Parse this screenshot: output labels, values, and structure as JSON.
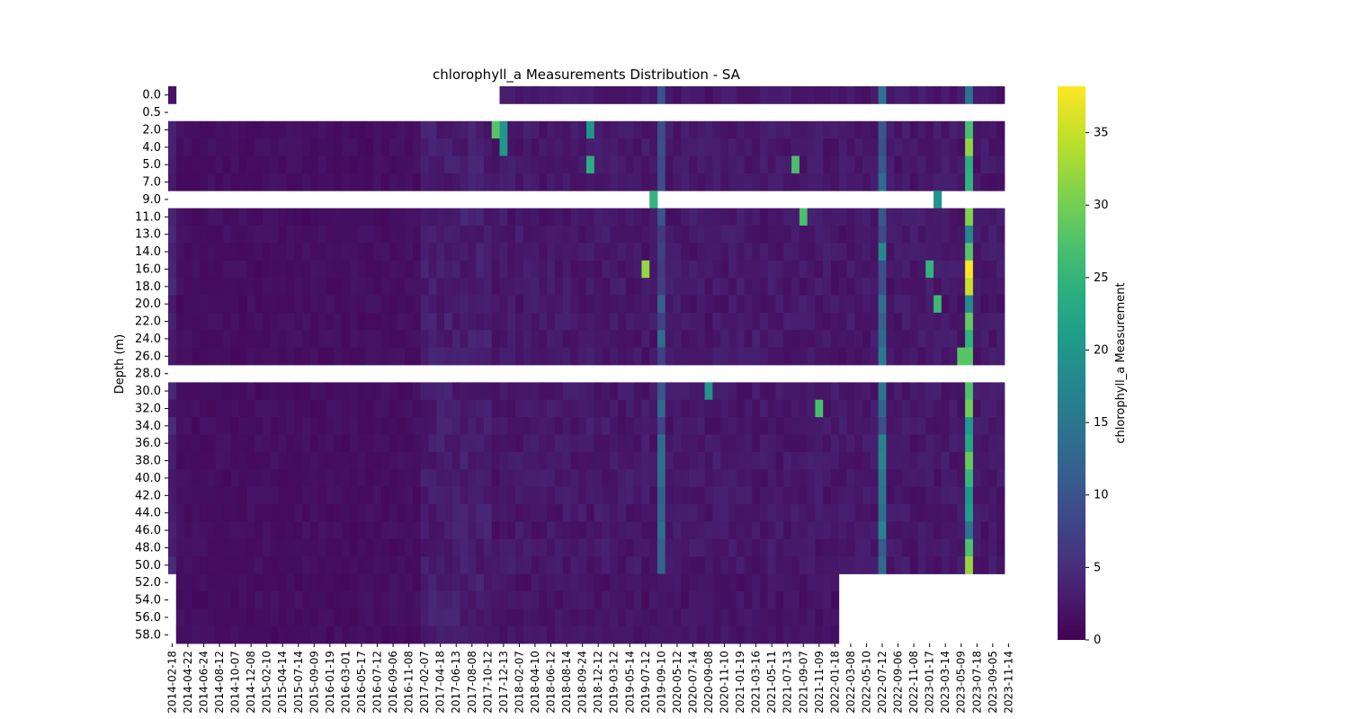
{
  "chart_data": {
    "type": "heatmap",
    "title": "chlorophyll_a Measurements Distribution - SA",
    "ylabel": "Depth (m)",
    "xlabel": "",
    "colorbar": {
      "label": "chlorophyll_a Measurement",
      "colormap": "viridis",
      "range": [
        0,
        38.2
      ],
      "ticks": [
        0,
        5,
        10,
        15,
        20,
        25,
        30,
        35
      ]
    },
    "x_tick_labels": [
      "2014-02-18",
      "2014-04-22",
      "2014-06-24",
      "2014-08-12",
      "2014-10-07",
      "2014-12-08",
      "2015-02-10",
      "2015-04-14",
      "2015-07-14",
      "2015-09-09",
      "2016-01-19",
      "2016-03-01",
      "2016-05-17",
      "2016-07-12",
      "2016-09-06",
      "2016-11-08",
      "2017-02-07",
      "2017-04-18",
      "2017-06-13",
      "2017-08-08",
      "2017-10-12",
      "2017-12-13",
      "2018-02-07",
      "2018-04-10",
      "2018-06-12",
      "2018-08-14",
      "2018-09-24",
      "2018-12-12",
      "2019-03-12",
      "2019-05-14",
      "2019-07-12",
      "2019-09-10",
      "2020-05-12",
      "2020-07-14",
      "2020-09-08",
      "2020-11-10",
      "2021-01-19",
      "2021-03-16",
      "2021-05-11",
      "2021-07-13",
      "2021-09-07",
      "2021-11-09",
      "2022-01-18",
      "2022-03-08",
      "2022-05-10",
      "2022-07-12",
      "2022-09-06",
      "2022-11-08",
      "2023-01-17",
      "2023-03-14",
      "2023-05-09",
      "2023-07-18",
      "2023-09-05",
      "2023-11-14"
    ],
    "y_tick_labels": [
      "0.0",
      "0.5",
      "2.0",
      "4.0",
      "5.0",
      "7.0",
      "9.0",
      "11.0",
      "13.0",
      "14.0",
      "16.0",
      "18.0",
      "20.0",
      "22.0",
      "24.0",
      "26.0",
      "28.0",
      "30.0",
      "32.0",
      "34.0",
      "36.0",
      "38.0",
      "40.0",
      "42.0",
      "44.0",
      "46.0",
      "48.0",
      "50.0",
      "52.0",
      "54.0",
      "56.0",
      "58.0"
    ],
    "n_dates": 106,
    "empty_depth_rows": [
      1,
      6,
      16
    ],
    "column_profiles": [
      {
        "dates": [
          0,
          0
        ],
        "depth_range": [
          0,
          50.5
        ],
        "typical_value": 3.5
      },
      {
        "dates": [
          1,
          31
        ],
        "depth_range": [
          0.5,
          58.5
        ],
        "typical_value": 1.5
      },
      {
        "dates": [
          32,
          40
        ],
        "depth_range": [
          0.5,
          58.5
        ],
        "typical_value": 3.0
      },
      {
        "dates": [
          41,
          84
        ],
        "depth_range": [
          0.5,
          58.5
        ],
        "typical_value": 2.0
      },
      {
        "dates": [
          42,
          105
        ],
        "depth_range": [
          0,
          50.5
        ],
        "typical_value": 2.5
      },
      {
        "dates": [
          62,
          62
        ],
        "depth_range": [
          0,
          50.5
        ],
        "typical_value": 10.0
      },
      {
        "dates": [
          90,
          90
        ],
        "depth_range": [
          0,
          50.5
        ],
        "typical_value": 13.0
      },
      {
        "dates": [
          101,
          101
        ],
        "depth_range": [
          0,
          50.5
        ],
        "typical_value": 24.0
      }
    ],
    "notable_values": [
      {
        "date_index": 41,
        "depth": "2.0",
        "value": 28
      },
      {
        "date_index": 42,
        "depth": "2.0",
        "value": 20
      },
      {
        "date_index": 42,
        "depth": "4.0",
        "value": 20
      },
      {
        "date_index": 53,
        "depth": "2.0",
        "value": 20
      },
      {
        "date_index": 53,
        "depth": "5.0",
        "value": 24
      },
      {
        "date_index": 60,
        "depth": "16.0",
        "value": 32
      },
      {
        "date_index": 61,
        "depth": "9.0",
        "value": 25
      },
      {
        "date_index": 68,
        "depth": "30.0",
        "value": 20
      },
      {
        "date_index": 79,
        "depth": "5.0",
        "value": 27
      },
      {
        "date_index": 80,
        "depth": "11.0",
        "value": 27
      },
      {
        "date_index": 82,
        "depth": "32.0",
        "value": 27
      },
      {
        "date_index": 96,
        "depth": "16.0",
        "value": 25
      },
      {
        "date_index": 97,
        "depth": "9.0",
        "value": 20
      },
      {
        "date_index": 97,
        "depth": "20.0",
        "value": 26
      },
      {
        "date_index": 101,
        "depth": "16.0",
        "value": 38
      },
      {
        "date_index": 101,
        "depth": "18.0",
        "value": 35
      },
      {
        "date_index": 101,
        "depth": "26.0",
        "value": 28
      },
      {
        "date_index": 100,
        "depth": "26.0",
        "value": 28
      }
    ]
  }
}
